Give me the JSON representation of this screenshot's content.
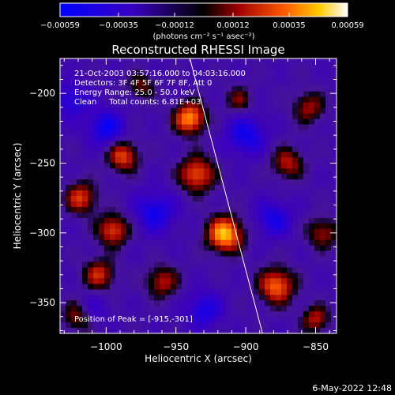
{
  "chart_data": {
    "type": "heatmap",
    "title": "Reconstructed RHESSI Image",
    "xlabel": "Heliocentric X (arcsec)",
    "ylabel": "Heliocentric Y (arcsec)",
    "xlim": [
      -1033,
      -835
    ],
    "ylim": [
      -372,
      -175
    ],
    "x_ticks": [
      -1000,
      -950,
      -900,
      -850
    ],
    "y_ticks": [
      -200,
      -250,
      -300,
      -350
    ],
    "x_tick_labels": [
      "−1000",
      "−950",
      "−900",
      "−850"
    ],
    "y_tick_labels": [
      "−200",
      "−250",
      "−300",
      "−350"
    ],
    "colorbar": {
      "range": [
        -0.00059,
        0.00059
      ],
      "ticks": [
        -0.00059,
        -0.00035,
        -0.00012,
        0.00012,
        0.00035,
        0.00059
      ],
      "tick_labels": [
        "−0.00059",
        "−0.00035",
        "−0.00012",
        "0.00012",
        "0.00035",
        "0.00059"
      ],
      "units": "(photons cm⁻² s⁻¹ asec⁻²)"
    },
    "info_lines": [
      "21-Oct-2003 03:57:16.000 to 04:03:16.000",
      "Detectors: 3F 4F 5F 6F 7F 8F, Att 0",
      "Energy Range: 25.0 - 50.0 keV",
      "Clean     Total counts: 6.81E+03"
    ],
    "peak_label": "Position of Peak = [-915,-301]",
    "peak": [
      -915,
      -301
    ],
    "limb_line": [
      [
        -940,
        -175
      ],
      [
        -888,
        -372
      ]
    ],
    "sources": [
      {
        "x": -915,
        "y": -301,
        "amp": 1.0,
        "s": 9
      },
      {
        "x": -940,
        "y": -218,
        "amp": 0.9,
        "s": 8
      },
      {
        "x": -988,
        "y": -245,
        "amp": 0.7,
        "s": 8
      },
      {
        "x": -1018,
        "y": -275,
        "amp": 0.65,
        "s": 8
      },
      {
        "x": -995,
        "y": -298,
        "amp": 0.7,
        "s": 8
      },
      {
        "x": -935,
        "y": -258,
        "amp": 0.75,
        "s": 9
      },
      {
        "x": -870,
        "y": -250,
        "amp": 0.55,
        "s": 8
      },
      {
        "x": -855,
        "y": -210,
        "amp": 0.5,
        "s": 8
      },
      {
        "x": -845,
        "y": -300,
        "amp": 0.5,
        "s": 8
      },
      {
        "x": -905,
        "y": -205,
        "amp": 0.4,
        "s": 7
      },
      {
        "x": -975,
        "y": -195,
        "amp": 0.4,
        "s": 7
      },
      {
        "x": -1005,
        "y": -330,
        "amp": 0.6,
        "s": 8
      },
      {
        "x": -960,
        "y": -335,
        "amp": 0.55,
        "s": 8
      },
      {
        "x": -878,
        "y": -338,
        "amp": 0.8,
        "s": 9
      },
      {
        "x": -850,
        "y": -362,
        "amp": 0.55,
        "s": 7
      },
      {
        "x": -1020,
        "y": -360,
        "amp": 0.5,
        "s": 8
      },
      {
        "x": -1000,
        "y": -225,
        "amp": -0.55,
        "s": 9
      },
      {
        "x": -965,
        "y": -285,
        "amp": -0.5,
        "s": 10
      },
      {
        "x": -900,
        "y": -230,
        "amp": -0.5,
        "s": 10
      },
      {
        "x": -880,
        "y": -290,
        "amp": -0.45,
        "s": 9
      },
      {
        "x": -1025,
        "y": -205,
        "amp": -0.4,
        "s": 9
      },
      {
        "x": -930,
        "y": -355,
        "amp": -0.45,
        "s": 9
      },
      {
        "x": -1010,
        "y": -355,
        "amp": -0.3,
        "s": 8
      }
    ],
    "grid": false
  },
  "footer": {
    "date": "6-May-2022 12:48"
  }
}
